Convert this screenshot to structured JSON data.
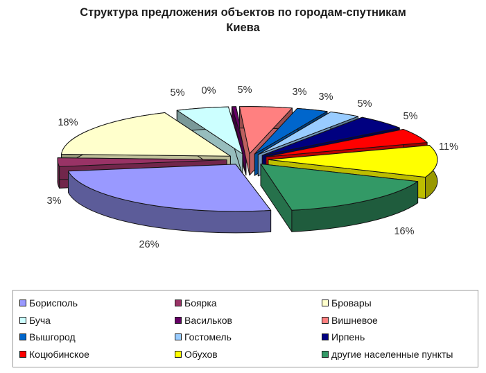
{
  "title_lines": [
    "Структура предложения объектов по городам-спутникам",
    "Киева"
  ],
  "chart_data": {
    "type": "pie",
    "style": "3d-exploded",
    "title": "Структура предложения объектов по городам-спутникам Киева",
    "direction": "clockwise",
    "start_angle_deg": 168,
    "legend_position": "bottom",
    "unit": "%",
    "categories": [
      "Борисполь",
      "Боярка",
      "Бровары",
      "Буча",
      "Васильков",
      "Вишневое",
      "Вышгород",
      "Гостомель",
      "Ирпень",
      "Коцюбинское",
      "Обухов",
      "другие населенные пункты"
    ],
    "values": [
      26,
      3,
      18,
      5,
      0,
      5,
      3,
      3,
      5,
      5,
      11,
      16
    ],
    "data_labels": [
      "26%",
      "3%",
      "18%",
      "5%",
      "0%",
      "5%",
      "3%",
      "3%",
      "5%",
      "5%",
      "11%",
      "16%"
    ],
    "colors": [
      "#9999FF",
      "#993366",
      "#FFFFCC",
      "#CCFFFF",
      "#660066",
      "#FF8080",
      "#0066CC",
      "#99CCFF",
      "#000080",
      "#FF0000",
      "#FFFF00",
      "#339966"
    ]
  }
}
